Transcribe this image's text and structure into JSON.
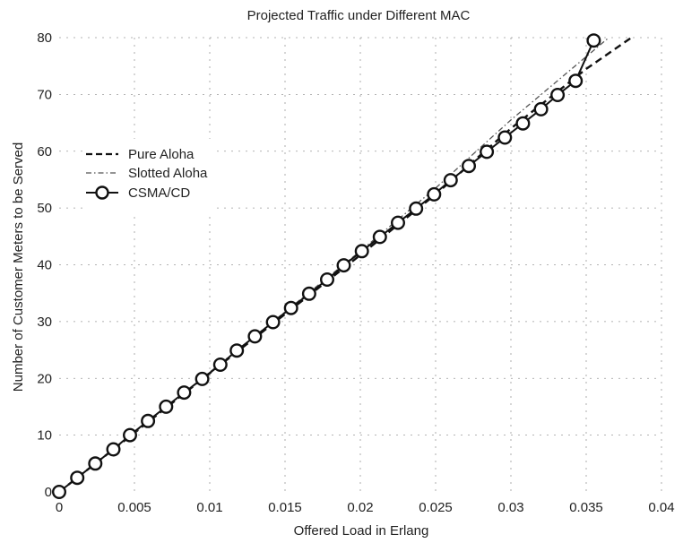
{
  "chart_data": {
    "type": "line",
    "title": "Projected Traffic under Different MAC",
    "xlabel": "Offered Load in Erlang",
    "ylabel": "Number of Customer Meters to be Served",
    "xlim": [
      0,
      0.04
    ],
    "ylim": [
      0,
      80
    ],
    "xticks": [
      0,
      0.005,
      0.01,
      0.015,
      0.02,
      0.025,
      0.03,
      0.035,
      0.04
    ],
    "xtick_labels": [
      "0",
      "0.005",
      "0.01",
      "0.015",
      "0.02",
      "0.025",
      "0.03",
      "0.035",
      "0.04"
    ],
    "yticks": [
      0,
      10,
      20,
      30,
      40,
      50,
      60,
      70,
      80
    ],
    "ytick_labels": [
      "0",
      "10",
      "20",
      "30",
      "40",
      "50",
      "60",
      "70",
      "80"
    ],
    "grid": true,
    "legend_position": "middle-left",
    "series": [
      {
        "name": "Pure Aloha",
        "style": "dashed",
        "color": "#111111",
        "x": [
          0,
          0.005,
          0.01,
          0.015,
          0.02,
          0.025,
          0.03,
          0.035,
          0.038
        ],
        "y": [
          0,
          10.4,
          20.9,
          31.3,
          41.7,
          52.4,
          64.0,
          74.5,
          80.0
        ]
      },
      {
        "name": "Slotted Aloha",
        "style": "dash-dot",
        "color": "#555555",
        "x": [
          0,
          0.005,
          0.01,
          0.015,
          0.02,
          0.025,
          0.03,
          0.0365
        ],
        "y": [
          0,
          10.5,
          21.1,
          31.7,
          42.4,
          53.5,
          65.5,
          80.0
        ]
      },
      {
        "name": "CSMA/CD",
        "style": "solid-circle",
        "color": "#111111",
        "x": [
          0,
          0.0012,
          0.0024,
          0.0036,
          0.0047,
          0.0059,
          0.0071,
          0.0083,
          0.0095,
          0.0107,
          0.0118,
          0.013,
          0.0142,
          0.0154,
          0.0166,
          0.0178,
          0.0189,
          0.0201,
          0.0213,
          0.0225,
          0.0237,
          0.0249,
          0.026,
          0.0272,
          0.0284,
          0.0296,
          0.0308,
          0.032,
          0.0331,
          0.0343,
          0.0355
        ],
        "y": [
          0,
          2.5,
          5.0,
          7.5,
          10.0,
          12.5,
          15.0,
          17.5,
          19.9,
          22.4,
          24.9,
          27.4,
          29.9,
          32.4,
          34.9,
          37.4,
          39.9,
          42.4,
          44.9,
          47.4,
          49.9,
          52.4,
          54.9,
          57.4,
          59.9,
          62.4,
          64.9,
          67.4,
          69.9,
          72.4,
          79.5
        ]
      }
    ]
  }
}
